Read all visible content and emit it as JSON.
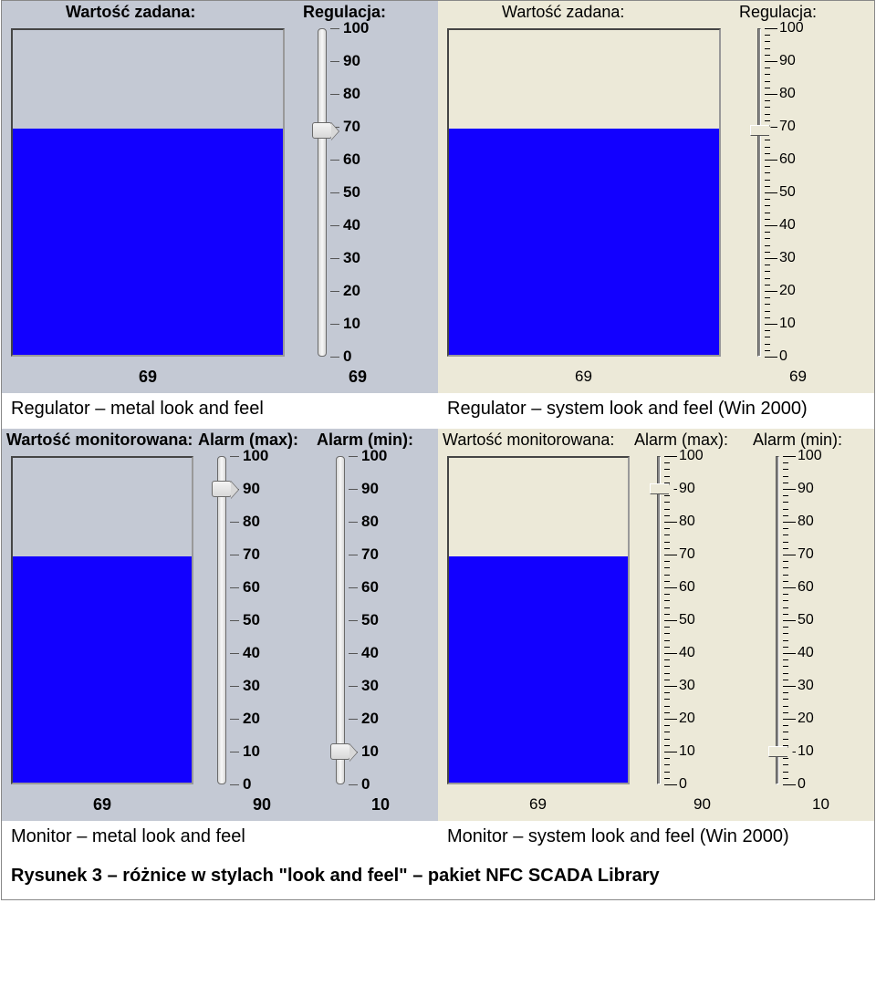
{
  "colors": {
    "metal_bg": "#c4c9d4",
    "sys_bg": "#ece9d8",
    "tank_empty_metal": "#c4c9d4",
    "tank_empty_sys": "#ece9d8",
    "tank_fill": "#1200ff",
    "text": "#000000"
  },
  "scale": {
    "min": 0,
    "max": 100,
    "major_ticks": [
      0,
      10,
      20,
      30,
      40,
      50,
      60,
      70,
      80,
      90,
      100
    ],
    "minor_step": 2
  },
  "panels": {
    "regulator_metal": {
      "bg": "#c4c9d4",
      "heading_tank": "Wartość zadana:",
      "heading_slider": "Regulacja:",
      "bold_headings": true,
      "tank_value": 69,
      "slider_value": 69,
      "readouts": {
        "tank": "69",
        "slider": "69"
      },
      "caption": "Regulator – metal look and feel"
    },
    "regulator_sys": {
      "bg": "#ece9d8",
      "heading_tank": "Wartość zadana:",
      "heading_slider": "Regulacja:",
      "bold_headings": false,
      "tank_value": 69,
      "slider_value": 69,
      "readouts": {
        "tank": "69",
        "slider": "69"
      },
      "caption": "Regulator – system look and feel (Win 2000)"
    },
    "monitor_metal": {
      "bg": "#c4c9d4",
      "heading_tank": "Wartość monitorowana:",
      "heading_alarm_max": "Alarm (max):",
      "heading_alarm_min": "Alarm (min):",
      "bold_headings": true,
      "tank_value": 69,
      "alarm_max_value": 90,
      "alarm_min_value": 10,
      "readouts": {
        "tank": "69",
        "alarm_max": "90",
        "alarm_min": "10"
      },
      "caption": "Monitor – metal look and feel"
    },
    "monitor_sys": {
      "bg": "#ece9d8",
      "heading_tank": "Wartość monitorowana:",
      "heading_alarm_max": "Alarm (max):",
      "heading_alarm_min": "Alarm (min):",
      "bold_headings": false,
      "tank_value": 69,
      "alarm_max_value": 90,
      "alarm_min_value": 10,
      "readouts": {
        "tank": "69",
        "alarm_max": "90",
        "alarm_min": "10"
      },
      "caption": "Monitor – system look and feel (Win 2000)"
    }
  },
  "figure_caption": "Rysunek 3 – różnice w stylach \"look and feel\" – pakiet NFC SCADA Library"
}
